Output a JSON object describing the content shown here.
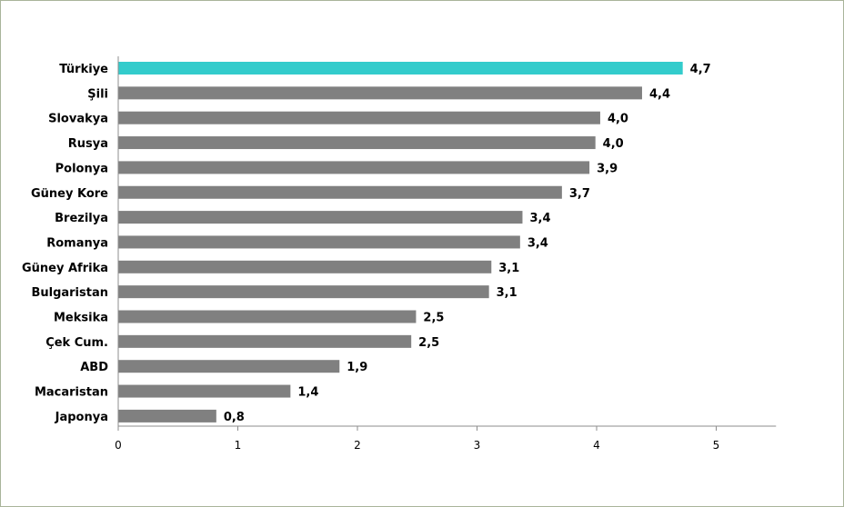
{
  "chart_data": {
    "type": "bar",
    "orientation": "horizontal",
    "categories": [
      "Türkiye",
      "Şili",
      "Slovakya",
      "Rusya",
      "Polonya",
      "Güney Kore",
      "Brezilya",
      "Romanya",
      "Güney Afrika",
      "Bulgaristan",
      "Meksika",
      "Çek Cum.",
      "ABD",
      "Macaristan",
      "Japonya"
    ],
    "values": [
      4.72,
      4.38,
      4.03,
      3.99,
      3.94,
      3.71,
      3.38,
      3.36,
      3.12,
      3.1,
      2.49,
      2.45,
      1.85,
      1.44,
      0.82
    ],
    "value_labels": [
      "4,7",
      "4,4",
      "4,0",
      "4,0",
      "3,9",
      "3,7",
      "3,4",
      "3,4",
      "3,1",
      "3,1",
      "2,5",
      "2,5",
      "1,9",
      "1,4",
      "0,8"
    ],
    "xlim": [
      0,
      5.5
    ],
    "xticks": [
      0,
      1,
      2,
      3,
      4,
      5
    ],
    "xtick_labels": [
      "0",
      "1",
      "2",
      "3",
      "4",
      "5"
    ],
    "title": "",
    "xlabel": "",
    "ylabel": "",
    "grid": false,
    "legend": "none",
    "colors": {
      "highlight": "#33cccc",
      "default": "#808080",
      "axis": "#8c8c8c",
      "frame": "#a9b49a"
    },
    "highlight_index": 0
  }
}
